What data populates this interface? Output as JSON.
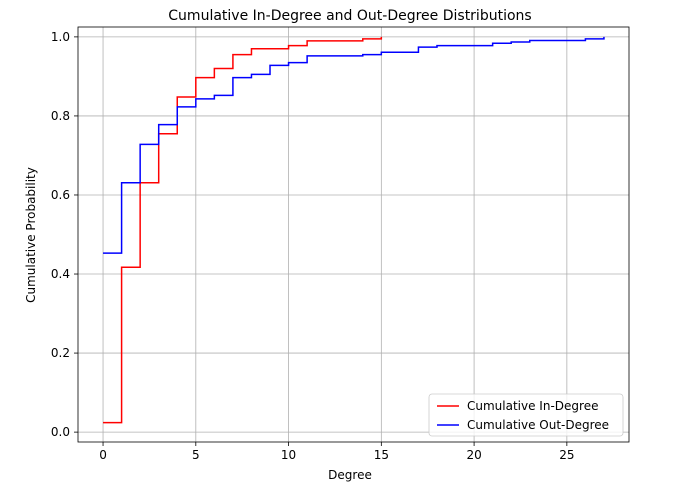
{
  "chart_data": {
    "type": "line",
    "title": "Cumulative In-Degree and Out-Degree Distributions",
    "xlabel": "Degree",
    "ylabel": "Cumulative Probability",
    "xlim": [
      -1.35,
      28.35
    ],
    "ylim": [
      -0.025,
      1.025
    ],
    "xticks": [
      0,
      5,
      10,
      15,
      20,
      25
    ],
    "yticks": [
      0.0,
      0.2,
      0.4,
      0.6,
      0.8,
      1.0
    ],
    "xtick_labels": [
      "0",
      "5",
      "10",
      "15",
      "20",
      "25"
    ],
    "ytick_labels": [
      "0.0",
      "0.2",
      "0.4",
      "0.6",
      "0.8",
      "1.0"
    ],
    "grid": true,
    "legend_position": "lower-right",
    "step": "post",
    "series": [
      {
        "name": "Cumulative In-Degree",
        "color": "#ff0000",
        "x": [
          0,
          1,
          2,
          3,
          4,
          5,
          6,
          7,
          8,
          10,
          11,
          14,
          15
        ],
        "y": [
          0.024,
          0.417,
          0.631,
          0.755,
          0.848,
          0.897,
          0.92,
          0.955,
          0.97,
          0.978,
          0.99,
          0.995,
          1.0
        ]
      },
      {
        "name": "Cumulative Out-Degree",
        "color": "#0000ff",
        "x": [
          0,
          1,
          2,
          3,
          4,
          5,
          6,
          7,
          8,
          9,
          10,
          11,
          14,
          15,
          17,
          18,
          21,
          22,
          23,
          26,
          27
        ],
        "y": [
          0.453,
          0.631,
          0.728,
          0.778,
          0.823,
          0.843,
          0.852,
          0.897,
          0.905,
          0.928,
          0.935,
          0.952,
          0.955,
          0.961,
          0.974,
          0.978,
          0.984,
          0.987,
          0.991,
          0.995,
          1.0
        ]
      }
    ]
  }
}
